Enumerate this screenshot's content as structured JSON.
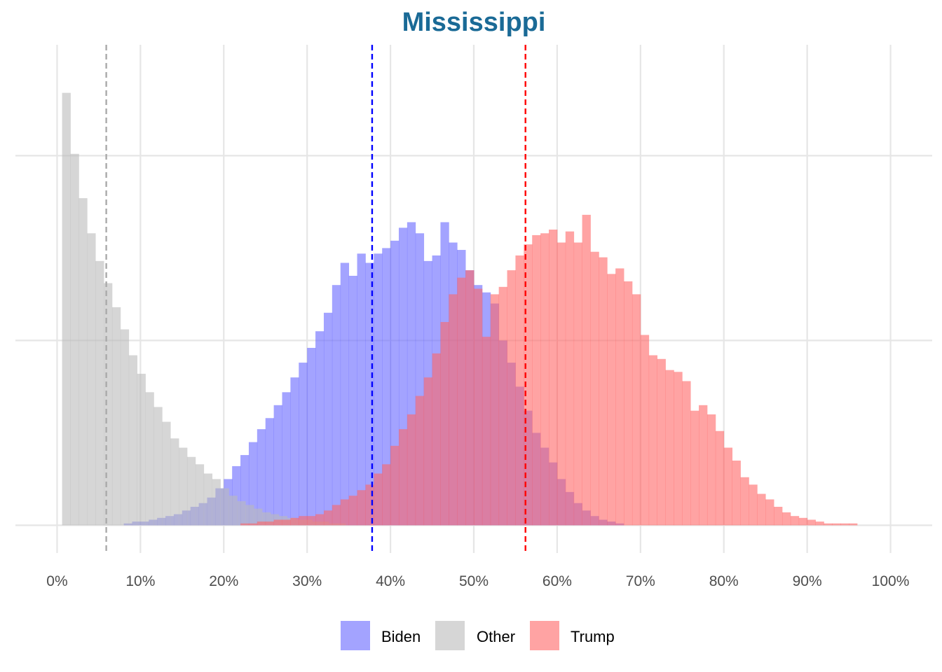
{
  "chart_data": {
    "type": "histogram",
    "title": "Mississippi",
    "title_color": "#1a6a96",
    "xlabel": "",
    "ylabel": "",
    "x_tick_labels": [
      "0%",
      "10%",
      "20%",
      "30%",
      "40%",
      "50%",
      "60%",
      "70%",
      "80%",
      "90%",
      "100%"
    ],
    "xlim": [
      -5,
      105
    ],
    "ylim": [
      -0.15,
      2.6
    ],
    "bin_width": 1,
    "grid": true,
    "legend_position": "bottom",
    "series": [
      {
        "name": "Biden",
        "color": "#6666ff",
        "mean": 37.8,
        "x_start": 8,
        "counts": [
          0.01,
          0.02,
          0.02,
          0.03,
          0.04,
          0.05,
          0.06,
          0.08,
          0.1,
          0.12,
          0.15,
          0.2,
          0.25,
          0.32,
          0.38,
          0.45,
          0.52,
          0.58,
          0.65,
          0.72,
          0.8,
          0.88,
          0.96,
          1.05,
          1.15,
          1.3,
          1.42,
          1.35,
          1.47,
          1.42,
          1.47,
          1.5,
          1.54,
          1.61,
          1.64,
          1.58,
          1.43,
          1.46,
          1.64,
          1.53,
          1.49,
          1.38,
          1.3,
          1.26,
          1.2,
          1.0,
          0.88,
          0.75,
          0.62,
          0.5,
          0.42,
          0.34,
          0.25,
          0.18,
          0.12,
          0.08,
          0.05,
          0.03,
          0.02,
          0.01
        ]
      },
      {
        "name": "Other",
        "color": "#bbbbbb",
        "mean": 5.9,
        "x_start": 0.6,
        "counts": [
          2.34,
          2.01,
          1.77,
          1.58,
          1.43,
          1.31,
          1.18,
          1.06,
          0.92,
          0.82,
          0.72,
          0.64,
          0.56,
          0.47,
          0.42,
          0.37,
          0.33,
          0.28,
          0.25,
          0.2,
          0.16,
          0.13,
          0.11,
          0.09,
          0.07,
          0.06,
          0.05,
          0.04,
          0.03,
          0.03,
          0.02,
          0.02,
          0.01,
          0.01
        ]
      },
      {
        "name": "Trump",
        "color": "#ff6666",
        "mean": 56.2,
        "x_start": 22,
        "counts": [
          0.01,
          0.01,
          0.02,
          0.02,
          0.03,
          0.03,
          0.04,
          0.05,
          0.05,
          0.06,
          0.08,
          0.11,
          0.14,
          0.16,
          0.19,
          0.22,
          0.28,
          0.33,
          0.43,
          0.52,
          0.6,
          0.7,
          0.8,
          0.93,
          1.1,
          1.25,
          1.34,
          1.38,
          1.28,
          1.02,
          1.25,
          1.29,
          1.38,
          1.46,
          1.52,
          1.57,
          1.58,
          1.6,
          1.53,
          1.59,
          1.53,
          1.68,
          1.48,
          1.45,
          1.36,
          1.39,
          1.32,
          1.25,
          1.03,
          0.92,
          0.9,
          0.84,
          0.83,
          0.78,
          0.62,
          0.65,
          0.6,
          0.51,
          0.42,
          0.35,
          0.26,
          0.22,
          0.17,
          0.14,
          0.1,
          0.07,
          0.05,
          0.04,
          0.03,
          0.02,
          0.01,
          0.01,
          0.01,
          0.01
        ]
      }
    ]
  }
}
